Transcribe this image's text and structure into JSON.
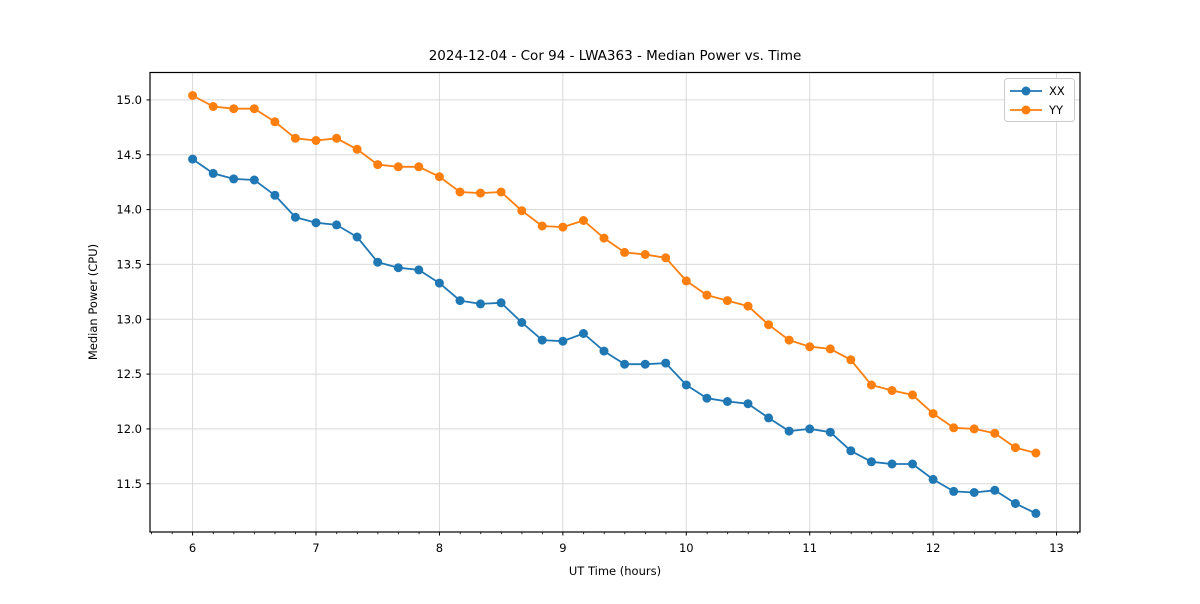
{
  "chart_data": {
    "type": "line",
    "title": "2024-12-04 - Cor 94 - LWA363 - Median Power vs. Time",
    "xlabel": "UT Time (hours)",
    "ylabel": "Median Power (CPU)",
    "grid": true,
    "legend_position": "upper right",
    "marker": "circle",
    "xlim": [
      5.655,
      13.19
    ],
    "ylim": [
      11.06,
      15.25
    ],
    "xticks": [
      6,
      7,
      8,
      9,
      10,
      11,
      12,
      13
    ],
    "yticks": [
      11.5,
      12.0,
      12.5,
      13.0,
      13.5,
      14.0,
      14.5,
      15.0
    ],
    "x_minor_step": 0.1667,
    "x": [
      6.0,
      6.167,
      6.333,
      6.5,
      6.667,
      6.833,
      7.0,
      7.167,
      7.333,
      7.5,
      7.667,
      7.833,
      8.0,
      8.167,
      8.333,
      8.5,
      8.667,
      8.833,
      9.0,
      9.167,
      9.333,
      9.5,
      9.667,
      9.833,
      10.0,
      10.167,
      10.333,
      10.5,
      10.667,
      10.833,
      11.0,
      11.167,
      11.333,
      11.5,
      11.667,
      11.833,
      12.0,
      12.167,
      12.333,
      12.5,
      12.667,
      12.833
    ],
    "series": [
      {
        "name": "XX",
        "color": "#1f77b4",
        "values": [
          14.46,
          14.33,
          14.28,
          14.27,
          14.13,
          13.93,
          13.88,
          13.86,
          13.75,
          13.52,
          13.47,
          13.45,
          13.33,
          13.17,
          13.14,
          13.15,
          12.97,
          12.81,
          12.8,
          12.87,
          12.71,
          12.59,
          12.59,
          12.6,
          12.4,
          12.28,
          12.25,
          12.23,
          12.1,
          11.98,
          12.0,
          11.97,
          11.8,
          11.7,
          11.68,
          11.68,
          11.54,
          11.43,
          11.42,
          11.44,
          11.32,
          11.23
        ]
      },
      {
        "name": "YY",
        "color": "#ff7f0e",
        "values": [
          15.04,
          14.94,
          14.92,
          14.92,
          14.8,
          14.65,
          14.63,
          14.65,
          14.55,
          14.41,
          14.39,
          14.39,
          14.3,
          14.16,
          14.15,
          14.16,
          13.99,
          13.85,
          13.84,
          13.9,
          13.74,
          13.61,
          13.59,
          13.56,
          13.35,
          13.22,
          13.17,
          13.12,
          12.95,
          12.81,
          12.75,
          12.73,
          12.63,
          12.4,
          12.35,
          12.31,
          12.14,
          12.01,
          12.0,
          11.96,
          11.83,
          11.78
        ]
      }
    ],
    "colors": {
      "grid": "#d9d9d9",
      "spine": "#000000",
      "legend_border": "#cccccc",
      "background": "#ffffff"
    }
  }
}
